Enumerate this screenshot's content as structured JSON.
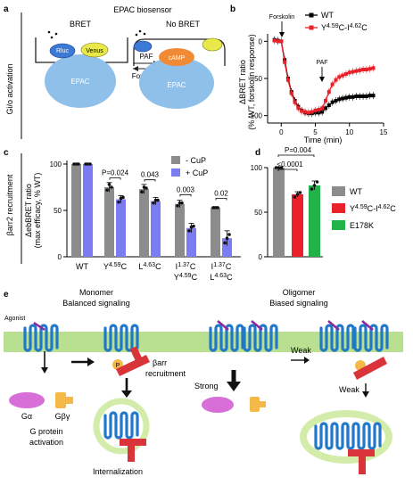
{
  "panels": {
    "a": {
      "letter": "a",
      "side_label": "Gi/o activation",
      "title": "EPAC biosensor",
      "bret_label": "BRET",
      "nobret_label": "No BRET",
      "rluc_label": "Rluc",
      "venus_label": "Venus",
      "epac_label": "EPAC",
      "camp_label": "cAMP",
      "paf_label": "PAF",
      "forskolin_label": "Forskolin"
    },
    "b": {
      "letter": "b",
      "forskolin_marker": "Forskolin",
      "paf_marker": "PAF",
      "legend_wt": "WT",
      "legend_mut_main": "Y",
      "legend_mut_sup1": "4.59",
      "legend_mut_mid": "C-I",
      "legend_mut_sup2": "4.62",
      "legend_mut_end": "C",
      "ylabel_line1": "ΔBRET ratio",
      "ylabel_line2": "(% WT, forskolin response)",
      "xlabel": "Time (min)",
      "x_ticks": [
        "0",
        "5",
        "10",
        "15"
      ],
      "y_ticks": [
        "0",
        "-50",
        "-100"
      ]
    },
    "c": {
      "letter": "c",
      "side_label": "βarr2 recruitment",
      "ylabel_line1": "ΔebBRET ratio",
      "ylabel_line2": "(max efficacy, % WT)",
      "y_ticks": [
        "100",
        "50",
        "0"
      ],
      "legend_minus": "- CuP",
      "legend_plus": "+ CuP",
      "sig_labels": [
        "P=0.024",
        "0.043",
        "0.003",
        "0.02"
      ],
      "cat_wt": "WT",
      "cat_y459c": {
        "base": "Y",
        "sup": "4.59",
        "end": "C"
      },
      "cat_l463c": {
        "base": "L",
        "sup": "4.63",
        "end": "C"
      },
      "cat_i137c_y459c": {
        "l1_base": "I",
        "l1_sup": "1.37",
        "l1_end": "C",
        "l2_base": "Y",
        "l2_sup": "4.59",
        "l2_end": "C"
      },
      "cat_i137c_l463c": {
        "l1_base": "I",
        "l1_sup": "1.37",
        "l1_end": "C",
        "l2_base": "L",
        "l2_sup": "4.63",
        "l2_end": "C"
      }
    },
    "d": {
      "letter": "d",
      "y_ticks": [
        "100",
        "50",
        "0"
      ],
      "sig_top": "P=0.004",
      "sig_bottom": "<0.0001",
      "legend_wt": "WT",
      "legend_mut": {
        "base": "Y",
        "sup1": "4.59",
        "mid": "C-I",
        "sup2": "4.62",
        "end": "C"
      },
      "legend_e178k": "E178K"
    },
    "e": {
      "letter": "e",
      "monomer_title": "Monomer",
      "monomer_sub": "Balanced signaling",
      "oligomer_title": "Oligomer",
      "oligomer_sub": "Biased signaling",
      "agonist": "Agonist",
      "p_label": "P",
      "barr_label_1": "βarr",
      "barr_label_2": "recruitment",
      "galpha": "Gα",
      "gbetagamma": "Gβγ",
      "gprotein_1": "G protein",
      "gprotein_2": "activation",
      "internalization": "Internalization",
      "strong": "Strong",
      "weak_1": "Weak",
      "weak_2": "Weak"
    }
  },
  "colors": {
    "wt_line": "#000000",
    "mut_line": "#e8212a",
    "bar_grey": "#8c8c8c",
    "bar_blue": "#7b7bf2",
    "bar_red": "#e8212a",
    "bar_green": "#22b24a",
    "membrane": "#b8e090",
    "receptor": "#1f78c8",
    "arrestin": "#d9343a",
    "galpha": "#d86ed8",
    "gbg": "#f5b94a",
    "epac": "#8ec0ea",
    "rluc": "#3a7ad6",
    "venus": "#e8e84a",
    "camp": "#f08a34",
    "vesicle": "#d4ecaa"
  },
  "chart_data": [
    {
      "type": "line",
      "panel": "b",
      "xlabel": "Time (min)",
      "ylabel": "ΔBRET ratio (% WT, forskolin response)",
      "xlim": [
        -2,
        15
      ],
      "ylim": [
        -110,
        10
      ],
      "legend": "top-right",
      "series": [
        {
          "name": "WT",
          "color": "#000000",
          "x": [
            -1,
            -0.5,
            0,
            0.5,
            1,
            1.5,
            2,
            2.5,
            3,
            3.5,
            4,
            4.5,
            5,
            5.5,
            6,
            6.5,
            7,
            7.5,
            8,
            8.5,
            9,
            9.5,
            10,
            10.5,
            11,
            11.5,
            12,
            12.5,
            13,
            13.5
          ],
          "y": [
            2,
            1,
            0,
            -25,
            -50,
            -68,
            -80,
            -88,
            -93,
            -96,
            -97,
            -97,
            -96,
            -96,
            -95,
            -90,
            -86,
            -82,
            -80,
            -78,
            -77,
            -76,
            -75,
            -75,
            -74,
            -74,
            -74,
            -74,
            -73,
            -73
          ]
        },
        {
          "name": "Y4.59C-I4.62C",
          "color": "#e8212a",
          "x": [
            -1,
            -0.5,
            0,
            0.5,
            1,
            1.5,
            2,
            2.5,
            3,
            3.5,
            4,
            4.5,
            5,
            5.5,
            6,
            6.5,
            7,
            7.5,
            8,
            8.5,
            9,
            9.5,
            10,
            10.5,
            11,
            11.5,
            12,
            12.5,
            13,
            13.5
          ],
          "y": [
            1,
            0,
            0,
            -28,
            -52,
            -70,
            -82,
            -90,
            -94,
            -95,
            -96,
            -95,
            -93,
            -92,
            -90,
            -80,
            -68,
            -58,
            -52,
            -48,
            -46,
            -44,
            -42,
            -41,
            -40,
            -39,
            -38,
            -38,
            -37,
            -36
          ]
        }
      ]
    },
    {
      "type": "bar",
      "panel": "c",
      "ylabel": "ΔebBRET ratio (max efficacy, % WT)",
      "ylim": [
        0,
        100
      ],
      "legend": "top-right",
      "categories": [
        "WT",
        "Y4.59C",
        "L4.63C",
        "I1.37C Y4.59C",
        "I1.37C L4.63C"
      ],
      "series": [
        {
          "name": "- CuP",
          "color": "#8c8c8c",
          "values": [
            100,
            75,
            73,
            57,
            53
          ],
          "errors": [
            0,
            5,
            5,
            4,
            1
          ],
          "points": [
            [
              100,
              100,
              100
            ],
            [
              72,
              78,
              75
            ],
            [
              70,
              75,
              74
            ],
            [
              55,
              58,
              58
            ],
            [
              53,
              53,
              53
            ]
          ]
        },
        {
          "name": "+ CuP",
          "color": "#7b7bf2",
          "values": [
            100,
            62,
            60,
            31,
            20
          ],
          "errors": [
            0,
            4,
            4,
            5,
            8
          ],
          "points": [
            [
              100,
              100,
              100
            ],
            [
              59,
              63,
              64
            ],
            [
              58,
              61,
              61
            ],
            [
              28,
              32,
              33
            ],
            [
              15,
              20,
              24
            ]
          ]
        }
      ],
      "significance": [
        {
          "label": "P=0.024",
          "category": "Y4.59C"
        },
        {
          "label": "0.043",
          "category": "L4.63C"
        },
        {
          "label": "0.003",
          "category": "I1.37C Y4.59C"
        },
        {
          "label": "0.02",
          "category": "I1.37C L4.63C"
        }
      ]
    },
    {
      "type": "bar",
      "panel": "d",
      "ylim": [
        0,
        100
      ],
      "legend": "right",
      "categories": [
        "WT",
        "Y4.59C-I4.62C",
        "E178K"
      ],
      "values": [
        100,
        70,
        80
      ],
      "errors": [
        0,
        3,
        5
      ],
      "colors": [
        "#8c8c8c",
        "#e8212a",
        "#22b24a"
      ],
      "points": [
        [
          100,
          100,
          100
        ],
        [
          67,
          70,
          72
        ],
        [
          76,
          80,
          84
        ]
      ],
      "significance": [
        {
          "label": "P=0.004",
          "from": "WT",
          "to": "E178K"
        },
        {
          "label": "<0.0001",
          "from": "WT",
          "to": "Y4.59C-I4.62C"
        }
      ]
    }
  ]
}
